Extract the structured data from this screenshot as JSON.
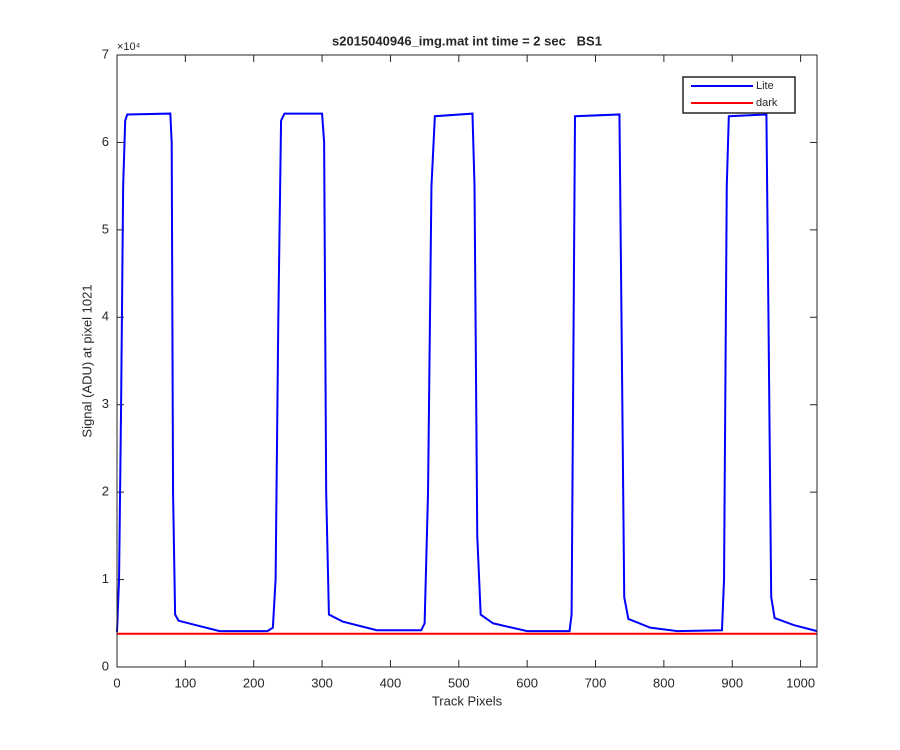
{
  "chart_data": {
    "type": "line",
    "title": "s2015040946_img.mat int time = 2 sec   BS1",
    "x_label": "Track Pixels",
    "y_label": "Signal (ADU) at pixel 1021",
    "y_multiplier": "×10⁴",
    "xlim": [
      0,
      1024
    ],
    "xticks": [
      0,
      100,
      200,
      300,
      400,
      500,
      600,
      700,
      800,
      900,
      1000
    ],
    "ylim": [
      0,
      70000
    ],
    "yticks": [
      {
        "value": 0,
        "label": "0"
      },
      {
        "value": 10000,
        "label": "1"
      },
      {
        "value": 20000,
        "label": "2"
      },
      {
        "value": 30000,
        "label": "3"
      },
      {
        "value": 40000,
        "label": "4"
      },
      {
        "value": 50000,
        "label": "5"
      },
      {
        "value": 60000,
        "label": "6"
      },
      {
        "value": 70000,
        "label": "7"
      }
    ],
    "legend": "top-right",
    "series": [
      {
        "name": "Lite",
        "color": "#0000ff",
        "x": [
          0,
          3,
          6,
          9,
          12,
          15,
          78,
          80,
          82,
          85,
          90,
          110,
          150,
          220,
          228,
          232,
          236,
          240,
          245,
          300,
          303,
          306,
          310,
          330,
          380,
          445,
          450,
          455,
          460,
          465,
          520,
          523,
          527,
          532,
          550,
          600,
          662,
          665,
          668,
          670,
          735,
          738,
          742,
          748,
          780,
          820,
          885,
          888,
          892,
          895,
          950,
          953,
          957,
          962,
          990,
          1024
        ],
        "values": [
          4000,
          10000,
          30000,
          55000,
          62500,
          63200,
          63300,
          60000,
          20000,
          6000,
          5300,
          4900,
          4100,
          4100,
          4500,
          10000,
          40000,
          62500,
          63300,
          63300,
          60000,
          20000,
          6000,
          5200,
          4200,
          4200,
          5000,
          20000,
          55000,
          63000,
          63300,
          55000,
          15000,
          6000,
          5000,
          4100,
          4100,
          6000,
          40000,
          63000,
          63200,
          40000,
          8000,
          5500,
          4500,
          4100,
          4200,
          10000,
          55000,
          63000,
          63200,
          40000,
          8000,
          5600,
          4800,
          4100
        ]
      },
      {
        "name": "dark",
        "color": "#ff0000",
        "x": [
          0,
          1024
        ],
        "values": [
          3800,
          3800
        ]
      }
    ]
  }
}
